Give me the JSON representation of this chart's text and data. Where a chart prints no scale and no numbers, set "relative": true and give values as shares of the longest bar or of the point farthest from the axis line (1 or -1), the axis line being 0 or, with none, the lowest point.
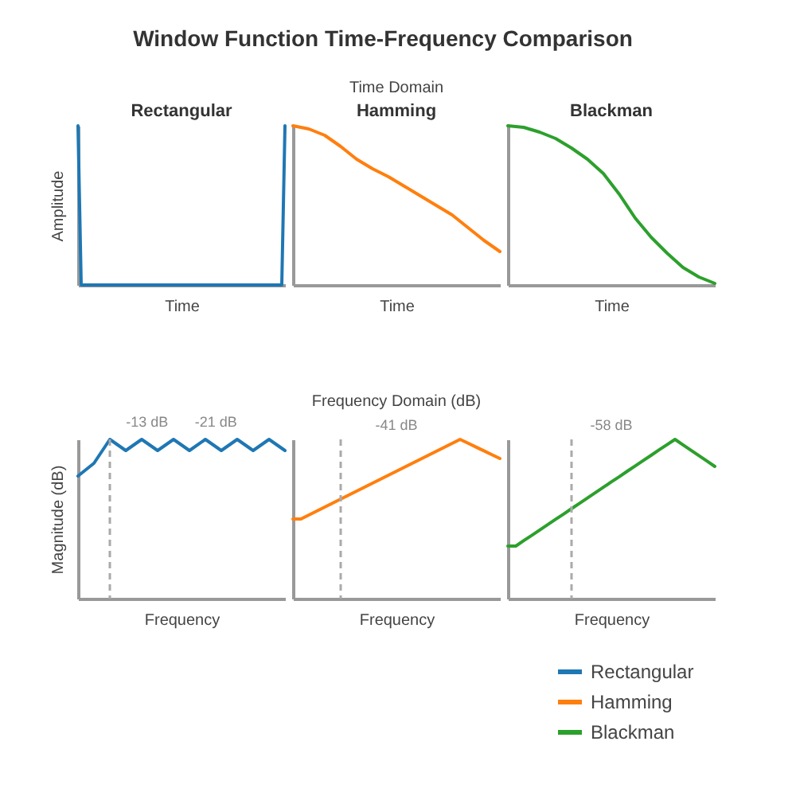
{
  "chart_data": [
    {
      "type": "line",
      "title": "Rectangular",
      "xlabel": "Time",
      "ylabel": "Amplitude",
      "relative": true,
      "annotations": [
        "Window Function Time-Frequency Comparison"
      ],
      "categories": [
        null,
        null,
        null,
        null,
        null,
        null,
        null,
        null,
        null,
        null,
        null,
        null,
        null,
        null,
        null,
        null,
        null,
        null,
        null,
        null,
        null,
        null,
        null,
        null,
        null,
        null,
        null,
        null,
        null,
        null,
        null,
        null,
        null,
        null,
        null,
        null,
        null,
        null,
        null,
        null,
        null,
        null,
        null,
        null,
        null,
        null,
        null,
        null,
        null,
        null,
        null,
        null,
        null,
        null,
        null,
        null,
        null,
        null,
        null,
        null,
        null,
        null,
        null,
        null,
        null,
        null
      ],
      "series": [
        {
          "color": "#1f77b4",
          "values": [
            1,
            0,
            0,
            0,
            0,
            0,
            0,
            0,
            0,
            0,
            0,
            0,
            0,
            0,
            0,
            0,
            0,
            0,
            0,
            0,
            0,
            0,
            0,
            0,
            0,
            0,
            0,
            0,
            0,
            0,
            0,
            0,
            0,
            0,
            0,
            0,
            0,
            0,
            0,
            0,
            0,
            0,
            0,
            0,
            0,
            0,
            0,
            0,
            0,
            0,
            0,
            0,
            0,
            0,
            0,
            0,
            0,
            0,
            0,
            0,
            0,
            0,
            0,
            0,
            0,
            1
          ]
        }
      ]
    },
    {
      "type": "line",
      "title": "Hamming",
      "subtitle": "Time Domain",
      "xlabel": "Time",
      "relative": true,
      "categories": [
        null,
        null,
        null,
        null,
        null,
        null,
        null,
        null,
        null,
        null,
        null,
        null,
        null,
        null
      ],
      "series": [
        {
          "color": "#ff7f0e",
          "values": [
            1,
            0.98,
            0.94,
            0.87,
            0.79,
            0.73,
            0.68,
            0.62,
            0.56,
            0.5,
            0.44,
            0.36,
            0.28,
            0.21
          ]
        }
      ]
    },
    {
      "type": "line",
      "title": "Blackman",
      "xlabel": "Time",
      "relative": true,
      "categories": [
        null,
        null,
        null,
        null,
        null,
        null,
        null,
        null,
        null,
        null,
        null,
        null,
        null,
        null
      ],
      "series": [
        {
          "color": "#2ca02c",
          "values": [
            1,
            0.99,
            0.96,
            0.92,
            0.86,
            0.79,
            0.7,
            0.57,
            0.42,
            0.3,
            0.2,
            0.11,
            0.05,
            0.01
          ]
        }
      ]
    },
    {
      "type": "line",
      "xlabel": "Frequency",
      "ylabel": "Magnitude (dB)",
      "relative": true,
      "legend": "bottom right",
      "categories": [
        null,
        null,
        null,
        null,
        null,
        null,
        null,
        null,
        null,
        null,
        null,
        null,
        null,
        null
      ],
      "annotations": [
        {
          "text": "-13 dB",
          "y": 1
        },
        {
          "text": "-21 dB",
          "y": 1
        }
      ],
      "series": [
        {
          "name": "Rectangular",
          "color": "#1f77b4",
          "values": [
            0.77,
            0.85,
            1,
            0.93,
            1,
            0.93,
            1,
            0.93,
            1,
            0.93,
            1,
            0.93,
            1,
            0.93
          ]
        }
      ]
    },
    {
      "type": "line",
      "subtitle": "Frequency Domain (dB)",
      "xlabel": "Frequency",
      "relative": true,
      "legend": "bottom right",
      "categories": [
        null,
        null,
        null,
        null,
        null,
        null,
        null,
        null,
        null,
        null,
        null,
        null,
        null,
        null,
        null,
        null,
        null,
        null,
        null,
        null,
        null,
        null,
        null,
        null,
        null,
        null,
        null
      ],
      "annotations": [
        "-41 dB"
      ],
      "series": [
        {
          "name": "Hamming",
          "color": "#ff7f0e",
          "values": [
            0.5,
            0.5,
            0.525,
            0.55,
            0.575,
            0.6,
            0.625,
            0.65,
            0.675,
            0.7,
            0.725,
            0.75,
            0.775,
            0.8,
            0.825,
            0.85,
            0.875,
            0.9,
            0.925,
            0.95,
            0.975,
            1,
            0.976,
            0.952,
            0.928,
            0.904,
            0.88
          ]
        }
      ]
    },
    {
      "type": "line",
      "xlabel": "Frequency",
      "relative": true,
      "legend": "bottom right",
      "categories": [
        null,
        null,
        null,
        null,
        null,
        null,
        null,
        null,
        null,
        null,
        null,
        null,
        null,
        null,
        null,
        null,
        null,
        null,
        null,
        null,
        null,
        null,
        null,
        null,
        null,
        null,
        null
      ],
      "annotations": [
        "-58 dB"
      ],
      "series": [
        {
          "name": "Blackman",
          "color": "#2ca02c",
          "values": [
            0.33,
            0.33,
            0.364,
            0.397,
            0.431,
            0.464,
            0.498,
            0.531,
            0.565,
            0.598,
            0.632,
            0.666,
            0.699,
            0.733,
            0.766,
            0.8,
            0.833,
            0.867,
            0.9,
            0.934,
            0.967,
            1,
            0.966,
            0.932,
            0.898,
            0.864,
            0.83
          ]
        }
      ]
    }
  ]
}
